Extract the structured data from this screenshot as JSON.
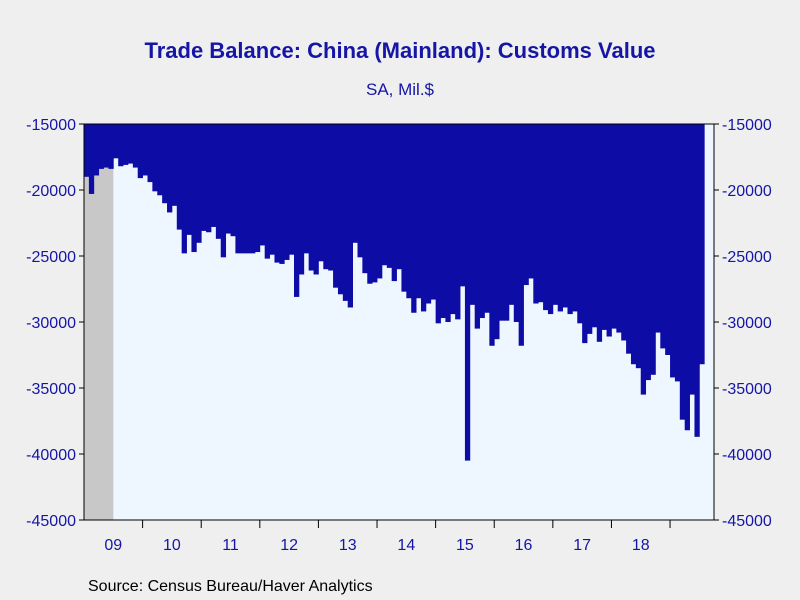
{
  "chart_data": {
    "type": "bar",
    "title": "Trade Balance: China (Mainland): Customs Value",
    "subtitle": "SA, Mil.$",
    "source": "Source:  Census Bureau/Haver Analytics",
    "ylim": [
      -45000,
      -15000
    ],
    "y_ticks": [
      "-15000",
      "-20000",
      "-25000",
      "-30000",
      "-35000",
      "-40000",
      "-45000"
    ],
    "x_ticks": [
      "09",
      "10",
      "11",
      "12",
      "13",
      "14",
      "15",
      "16",
      "17",
      "18"
    ],
    "x_start": "2009-01",
    "recession_shading": {
      "start": "2009-01",
      "end": "2009-06"
    },
    "colors": {
      "bar": "#0d0da6",
      "plot_bg": "#eef6ff",
      "recession": "#c8c8c8",
      "axis": "#000000",
      "text": "#1515a6"
    },
    "values": [
      -19000,
      -20300,
      -18900,
      -18400,
      -18300,
      -18400,
      -17600,
      -18200,
      -18100,
      -18000,
      -18300,
      -19100,
      -18900,
      -19400,
      -20100,
      -20400,
      -21000,
      -21700,
      -21200,
      -23000,
      -24800,
      -23400,
      -24700,
      -24000,
      -23100,
      -23200,
      -22800,
      -23700,
      -25100,
      -23300,
      -23500,
      -24800,
      -24800,
      -24800,
      -24800,
      -24700,
      -24200,
      -25200,
      -24900,
      -25500,
      -25600,
      -25300,
      -24900,
      -28100,
      -26400,
      -24800,
      -26100,
      -26400,
      -25400,
      -26000,
      -26100,
      -27400,
      -27900,
      -28400,
      -28900,
      -24000,
      -25100,
      -26300,
      -27100,
      -27000,
      -26700,
      -25700,
      -25900,
      -26900,
      -26000,
      -27700,
      -28200,
      -29300,
      -28200,
      -29200,
      -28600,
      -28300,
      -30100,
      -29700,
      -30000,
      -29400,
      -29800,
      -27300,
      -40500,
      -28700,
      -30500,
      -29700,
      -29300,
      -31800,
      -31300,
      -29900,
      -29900,
      -28700,
      -30000,
      -31800,
      -27200,
      -26700,
      -28600,
      -28500,
      -29100,
      -29400,
      -28700,
      -29200,
      -28900,
      -29400,
      -29200,
      -30100,
      -31600,
      -30900,
      -30400,
      -31500,
      -30600,
      -31100,
      -30500,
      -30800,
      -31400,
      -32400,
      -33200,
      -33500,
      -35500,
      -34400,
      -34000,
      -30800,
      -32000,
      -32500,
      -34200,
      -34500,
      -37400,
      -38200,
      -35500,
      -38700,
      -33200
    ]
  }
}
